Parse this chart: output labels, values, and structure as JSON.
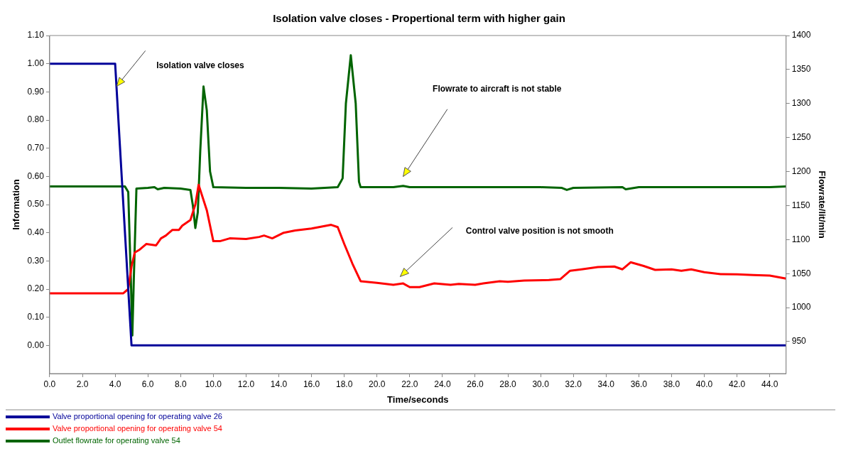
{
  "chart_data": {
    "type": "line",
    "title": "Isolation valve closes - Propertional term with higher gain",
    "xlabel": "Time/seconds",
    "ylabel": "Information",
    "y2label": "Flowrate/lit/min",
    "xlim": [
      0,
      45
    ],
    "xticks": [
      {
        "value": 0,
        "label": "0.0"
      },
      {
        "value": 2,
        "label": "2.0"
      },
      {
        "value": 4,
        "label": "4.0"
      },
      {
        "value": 6,
        "label": "6.0"
      },
      {
        "value": 8,
        "label": "8.0"
      },
      {
        "value": 10,
        "label": "10.0"
      },
      {
        "value": 12,
        "label": "12.0"
      },
      {
        "value": 14,
        "label": "14.0"
      },
      {
        "value": 16,
        "label": "16.0"
      },
      {
        "value": 18,
        "label": "18.0"
      },
      {
        "value": 20,
        "label": "20.0"
      },
      {
        "value": 22,
        "label": "22.0"
      },
      {
        "value": 24,
        "label": "24.0"
      },
      {
        "value": 26,
        "label": "26.0"
      },
      {
        "value": 28,
        "label": "28.0"
      },
      {
        "value": 30,
        "label": "30.0"
      },
      {
        "value": 32,
        "label": "32.0"
      },
      {
        "value": 34,
        "label": "34.0"
      },
      {
        "value": 36,
        "label": "36.0"
      },
      {
        "value": 38,
        "label": "38.0"
      },
      {
        "value": 40,
        "label": "40.0"
      },
      {
        "value": 42,
        "label": "42.0"
      },
      {
        "value": 44,
        "label": "44.0"
      }
    ],
    "ylim": [
      -0.1,
      1.1
    ],
    "yticks": [
      {
        "value": 0,
        "label": "0.00"
      },
      {
        "value": 0.1,
        "label": "0.10"
      },
      {
        "value": 0.2,
        "label": "0.20"
      },
      {
        "value": 0.3,
        "label": "0.30"
      },
      {
        "value": 0.4,
        "label": "0.40"
      },
      {
        "value": 0.5,
        "label": "0.50"
      },
      {
        "value": 0.6,
        "label": "0.60"
      },
      {
        "value": 0.7,
        "label": "0.70"
      },
      {
        "value": 0.8,
        "label": "0.80"
      },
      {
        "value": 0.9,
        "label": "0.90"
      },
      {
        "value": 1,
        "label": "1.00"
      },
      {
        "value": 1.1,
        "label": "1.10"
      }
    ],
    "y2lim": [
      903,
      1400
    ],
    "y2ticks": [
      950,
      1000,
      1050,
      1100,
      1150,
      1200,
      1250,
      1300,
      1350,
      1400
    ],
    "grid": false,
    "legend": "bottom",
    "marker": "none",
    "line_style": "solid",
    "annotations": [
      "Isolation valve closes",
      "Flowrate to aircraft is not stable",
      "Control valve position is not smooth"
    ],
    "series": [
      {
        "name": "Valve proportional opening for operating valve 26",
        "color": "#000099",
        "x": [
          0,
          4,
          5,
          45
        ],
        "values": [
          1,
          1,
          0,
          0
        ]
      },
      {
        "name": "Valve proportional opening for operating valve 54",
        "color": "#ff0000",
        "x": [
          0,
          4.5,
          4.8,
          5,
          5.2,
          5.5,
          5.9,
          6.5,
          6.8,
          7.1,
          7.5,
          7.9,
          8.1,
          8.6,
          8.9,
          9.1,
          9.6,
          10,
          10.4,
          11,
          12,
          12.8,
          13.1,
          13.6,
          14.3,
          15,
          16,
          17.2,
          17.6,
          18,
          18.5,
          19,
          20,
          21,
          21.6,
          22,
          22.6,
          23.5,
          24.5,
          25,
          26,
          26.5,
          27.5,
          28,
          29,
          30.5,
          31.2,
          31.8,
          32.5,
          33.5,
          34.5,
          35,
          35.5,
          36.3,
          37,
          38,
          38.6,
          39.2,
          40,
          41,
          42,
          43,
          44,
          45
        ],
        "values": [
          0.185,
          0.185,
          0.2,
          0.28,
          0.33,
          0.34,
          0.36,
          0.355,
          0.38,
          0.39,
          0.41,
          0.41,
          0.425,
          0.445,
          0.5,
          0.57,
          0.48,
          0.37,
          0.37,
          0.38,
          0.378,
          0.385,
          0.39,
          0.38,
          0.4,
          0.408,
          0.415,
          0.428,
          0.42,
          0.36,
          0.29,
          0.228,
          0.222,
          0.215,
          0.22,
          0.207,
          0.207,
          0.22,
          0.215,
          0.218,
          0.215,
          0.22,
          0.228,
          0.226,
          0.23,
          0.232,
          0.235,
          0.265,
          0.27,
          0.278,
          0.28,
          0.27,
          0.295,
          0.282,
          0.268,
          0.27,
          0.265,
          0.27,
          0.26,
          0.253,
          0.252,
          0.25,
          0.248,
          0.237
        ]
      },
      {
        "name": "Outlet flowrate for operating valve 54",
        "color": "#006400",
        "axis": "y2",
        "x": [
          0,
          4.6,
          4.8,
          4.95,
          5.05,
          5.15,
          5.3,
          6,
          6.4,
          6.6,
          7,
          8,
          8.6,
          8.75,
          8.9,
          9.05,
          9.2,
          9.4,
          9.6,
          9.8,
          10,
          12,
          14,
          16,
          17.6,
          17.9,
          18.1,
          18.4,
          18.7,
          18.9,
          19,
          21,
          21.6,
          22,
          26,
          30,
          31.3,
          31.6,
          32,
          35,
          35.2,
          36,
          40,
          44,
          45
        ],
        "values": [
          1178,
          1178,
          1170,
          1050,
          959,
          1050,
          1175,
          1176,
          1177,
          1174,
          1176,
          1175,
          1173,
          1150,
          1117,
          1140,
          1230,
          1325,
          1290,
          1200,
          1177,
          1176,
          1176,
          1175,
          1177,
          1190,
          1300,
          1371,
          1300,
          1185,
          1177,
          1177,
          1179,
          1177,
          1177,
          1177,
          1176,
          1173,
          1176,
          1177,
          1174,
          1177,
          1177,
          1177,
          1178
        ]
      }
    ]
  }
}
